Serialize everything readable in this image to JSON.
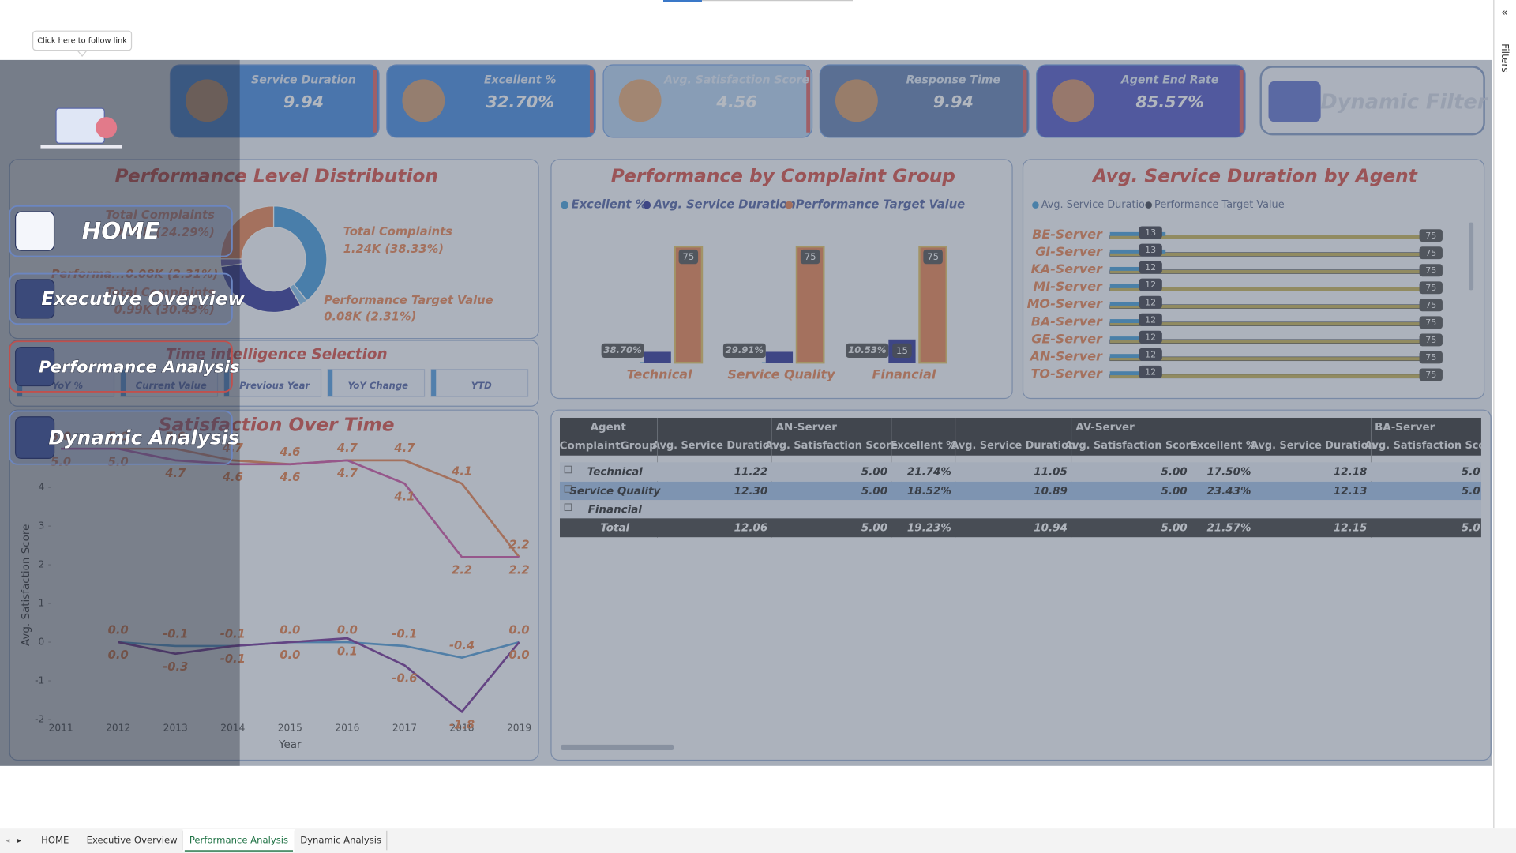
{
  "tooltip": "Click here to follow link",
  "filters": "Filters",
  "kpis": [
    {
      "title": "Service Duration",
      "value": "9.94"
    },
    {
      "title": "Excellent %",
      "value": "32.70%"
    },
    {
      "title": "Avg. Satisfaction Score",
      "value": "4.56"
    },
    {
      "title": "Response Time",
      "value": "9.94"
    },
    {
      "title": "Agent End Rate",
      "value": "85.57%"
    }
  ],
  "dynamic_filter": "Dynamic Filter",
  "nav": [
    "HOME",
    "Executive Overview",
    "Performance Analysis",
    "Dynamic Analysis"
  ],
  "donut": {
    "title": "Performance Level Distribution",
    "slices": [
      {
        "label": "Total Complaints",
        "value": 38.33,
        "value_label": "1.24K (38.33%)",
        "color": "#4c9fdc"
      },
      {
        "label": "Performance Target Value",
        "value": 2.31,
        "value_label": "0.08K (2.31%)",
        "color": "#8cc4ee"
      },
      {
        "label": "Total Complaints",
        "value": 30.43,
        "value_label": "0.99K (30.43%)",
        "color": "#3b3f9e"
      },
      {
        "label": "Performa...",
        "value": 2.31,
        "value_label": "0.08K (2.31%)",
        "color": "#7a6fc0"
      },
      {
        "label": "Total Complaints",
        "value": 24.29,
        "value_label": "0.79K (24.29%)",
        "color": "#e8895a"
      }
    ]
  },
  "time_intel": {
    "title": "Time intelligence Selection",
    "options": [
      "YoY %",
      "Current Value",
      "Previous Year",
      "YoY Change",
      "YTD"
    ]
  },
  "complaint": {
    "title": "Performance by Complaint Group",
    "categories": [
      "Technical",
      "Service Quality",
      "Financial"
    ],
    "series": [
      {
        "name": "Excellent %",
        "color": "#4fa3d9",
        "values": [
          0.387,
          0.2991,
          0.1053
        ],
        "value_labels": [
          "38.70%",
          "29.91%",
          "10.53%"
        ]
      },
      {
        "name": "Avg. Service Duration",
        "color": "#3a3f9e",
        "values": [
          7,
          7,
          15
        ]
      },
      {
        "name": "Performance Target Value",
        "color": "#e8895a",
        "values": [
          75,
          75,
          75
        ]
      }
    ]
  },
  "agent": {
    "title": "Avg. Service Duration by Agent",
    "categories": [
      "BE-Server",
      "GI-Server",
      "KA-Server",
      "MI-Server",
      "MO-Server",
      "BA-Server",
      "GE-Server",
      "AN-Server",
      "TO-Server"
    ],
    "series": [
      {
        "name": "Avg. Service Duration",
        "color": "#4fa3d9",
        "values": [
          13,
          13,
          12,
          12,
          12,
          12,
          12,
          12,
          12
        ]
      },
      {
        "name": "Performance Target Value",
        "color": "#4a4f5a",
        "values": [
          75,
          75,
          75,
          75,
          75,
          75,
          75,
          75,
          75
        ]
      }
    ]
  },
  "line": {
    "title": "Satisfaction Over Time",
    "x_label": "Year",
    "y_label": "Avg. Satisfaction Score",
    "x": [
      2011,
      2012,
      2013,
      2014,
      2015,
      2016,
      2017,
      2018,
      2019
    ],
    "ylim": [
      -2,
      5.2
    ],
    "yticks": [
      -2,
      -1,
      0,
      1,
      2,
      3,
      4
    ],
    "series": [
      {
        "color": "#e8895a",
        "values": [
          5.0,
          5.0,
          5.0,
          4.7,
          4.6,
          4.7,
          4.7,
          4.1,
          2.2
        ],
        "value_labels": [
          "5.0",
          "5.0",
          "5.0",
          "4.7",
          "4.6",
          "4.7",
          "4.7",
          "4.1",
          "2.2"
        ]
      },
      {
        "color": "#d05ca8",
        "values": [
          5.0,
          5.0,
          4.7,
          4.6,
          4.6,
          4.7,
          4.1,
          2.2,
          2.2
        ],
        "value_labels": [
          "5.0",
          "5.0",
          "4.7",
          "4.6",
          "4.6",
          "4.7",
          "4.1",
          "2.2",
          "2.2"
        ]
      },
      {
        "color": "#5aa0d8",
        "values": [
          null,
          0.0,
          -0.1,
          -0.1,
          0.0,
          0.0,
          -0.1,
          -0.4,
          0.0
        ],
        "value_labels": [
          null,
          "0.0",
          "-0.1",
          "-0.1",
          "0.0",
          "0.0",
          "-0.1",
          "-0.4",
          "0.0"
        ]
      },
      {
        "color": "#7a3b9a",
        "values": [
          null,
          0.0,
          -0.3,
          -0.1,
          0.0,
          0.1,
          -0.6,
          -1.8,
          0.0
        ],
        "value_labels": [
          null,
          "0.0",
          "-0.3",
          "-0.1",
          "0.0",
          "0.1",
          "-0.6",
          "-1.8",
          "0.0"
        ]
      }
    ]
  },
  "table": {
    "row_header": "Agent",
    "sub_header": "ComplaintGroup",
    "groups": [
      "AN-Server",
      "AV-Server",
      "BA-Server"
    ],
    "measures": [
      "Avg. Service Duration",
      "Avg. Satisfaction Score",
      "Excellent %"
    ],
    "rows": [
      [
        "Technical",
        "11.22",
        "5.00",
        "21.74%",
        "11.05",
        "5.00",
        "17.50%",
        "12.18",
        "5.0"
      ],
      [
        "Service Quality",
        "12.30",
        "5.00",
        "18.52%",
        "10.89",
        "5.00",
        "23.43%",
        "12.13",
        "5.0"
      ],
      [
        "Financial"
      ],
      [
        "Total",
        "12.06",
        "5.00",
        "19.23%",
        "10.94",
        "5.00",
        "21.57%",
        "12.15",
        "5.0"
      ]
    ]
  },
  "tabs": [
    "HOME",
    "Executive Overview",
    "Performance Analysis",
    "Dynamic Analysis"
  ],
  "active_tab": 2
}
